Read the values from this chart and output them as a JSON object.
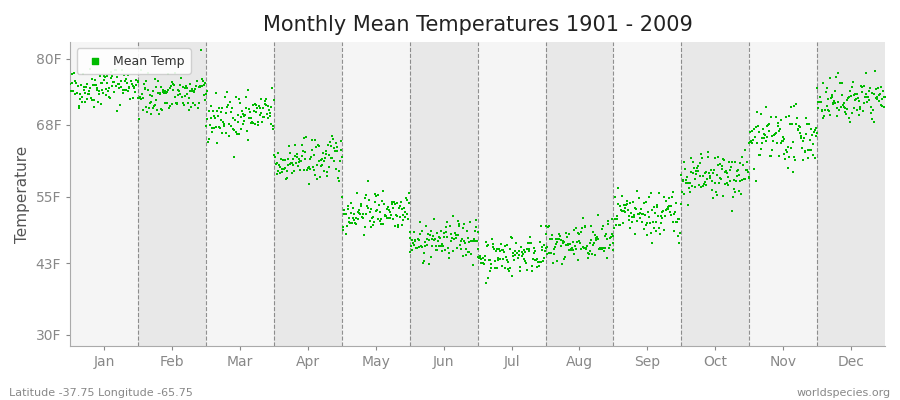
{
  "title": "Monthly Mean Temperatures 1901 - 2009",
  "ylabel": "Temperature",
  "subtitle_left": "Latitude -37.75 Longitude -65.75",
  "subtitle_right": "worldspecies.org",
  "legend_label": "Mean Temp",
  "months": [
    "Jan",
    "Feb",
    "Mar",
    "Apr",
    "May",
    "Jun",
    "Jul",
    "Aug",
    "Sep",
    "Oct",
    "Nov",
    "Dec"
  ],
  "yticks": [
    30,
    43,
    55,
    68,
    80
  ],
  "ytick_labels": [
    "30F",
    "43F",
    "55F",
    "68F",
    "80F"
  ],
  "ylim": [
    28,
    83
  ],
  "n_years": 109,
  "mean_temps_f": [
    75.0,
    73.5,
    69.5,
    61.5,
    52.5,
    47.0,
    44.5,
    46.5,
    51.5,
    58.5,
    65.5,
    72.5
  ],
  "temp_std_f": [
    1.8,
    2.0,
    2.2,
    2.0,
    1.8,
    1.8,
    1.8,
    2.0,
    2.2,
    2.2,
    2.5,
    2.0
  ],
  "temp_trend_f": [
    0.01,
    0.01,
    0.01,
    0.01,
    0.01,
    0.01,
    0.01,
    0.01,
    0.01,
    0.01,
    0.01,
    0.01
  ],
  "marker_color": "#00bb00",
  "bg_color_odd": "#f5f5f5",
  "bg_color_even": "#e8e8e8",
  "grid_color": "#666666",
  "title_fontsize": 15,
  "axis_fontsize": 10,
  "legend_fontsize": 9,
  "fig_bg_color": "#ffffff"
}
